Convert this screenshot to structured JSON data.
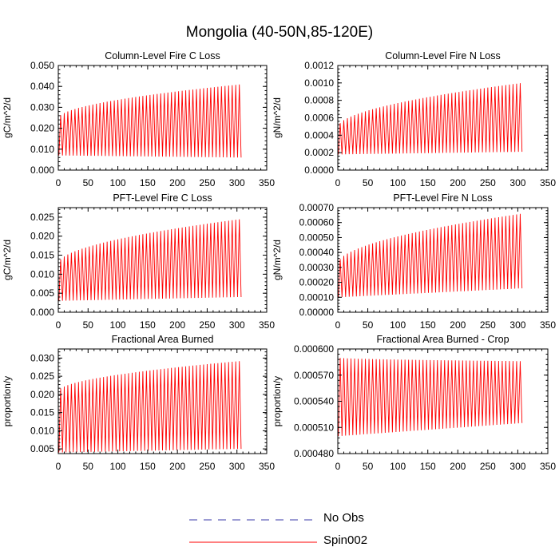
{
  "figure_title": "Mongolia (40-50N,85-120E)",
  "legend": {
    "items": [
      {
        "label": "No Obs",
        "color": "#3a3aa8",
        "style": "dashed"
      },
      {
        "label": "Spin002",
        "color": "#ff0000",
        "style": "solid"
      }
    ]
  },
  "chart_data": [
    {
      "type": "line",
      "title": "Column-Level Fire C Loss",
      "ylabel": "gC/m^2/d",
      "xlim": [
        0,
        350
      ],
      "ylim": [
        0.0,
        0.05
      ],
      "xticks": [
        0,
        50,
        100,
        150,
        200,
        250,
        300,
        350
      ],
      "yticks": [
        0.0,
        0.01,
        0.02,
        0.03,
        0.04,
        0.05
      ],
      "ytick_labels": [
        "0.000",
        "0.010",
        "0.020",
        "0.030",
        "0.040",
        "0.050"
      ],
      "series": [
        {
          "name": "Spin002",
          "color": "#ff0000",
          "x_start": 1,
          "x_end": 307,
          "cycle": 6,
          "min_start": 0.007,
          "min_end": 0.006,
          "max_start": 0.025,
          "max_end": 0.041
        }
      ]
    },
    {
      "type": "line",
      "title": "Column-Level Fire N Loss",
      "ylabel": "gN/m^2/d",
      "xlim": [
        0,
        350
      ],
      "ylim": [
        0.0,
        0.0012
      ],
      "xticks": [
        0,
        50,
        100,
        150,
        200,
        250,
        300,
        350
      ],
      "yticks": [
        0.0,
        0.0002,
        0.0004,
        0.0006,
        0.0008,
        0.001,
        0.0012
      ],
      "ytick_labels": [
        "0.0000",
        "0.0002",
        "0.0004",
        "0.0006",
        "0.0008",
        "0.0010",
        "0.0012"
      ],
      "series": [
        {
          "name": "Spin002",
          "color": "#ff0000",
          "x_start": 1,
          "x_end": 307,
          "cycle": 6,
          "min_start": 0.00018,
          "min_end": 0.00021,
          "max_start": 0.0005,
          "max_end": 0.001
        }
      ]
    },
    {
      "type": "line",
      "title": "PFT-Level Fire C Loss",
      "ylabel": "gC/m^2/d",
      "xlim": [
        0,
        350
      ],
      "ylim": [
        0.0,
        0.0275
      ],
      "xticks": [
        0,
        50,
        100,
        150,
        200,
        250,
        300,
        350
      ],
      "yticks": [
        0.0,
        0.005,
        0.01,
        0.015,
        0.02,
        0.025
      ],
      "ytick_labels": [
        "0.000",
        "0.005",
        "0.010",
        "0.015",
        "0.020",
        "0.025"
      ],
      "series": [
        {
          "name": "Spin002",
          "color": "#ff0000",
          "x_start": 1,
          "x_end": 307,
          "cycle": 6,
          "min_start": 0.003,
          "min_end": 0.004,
          "max_start": 0.013,
          "max_end": 0.0245
        }
      ]
    },
    {
      "type": "line",
      "title": "PFT-Level Fire N Loss",
      "ylabel": "gN/m^2/d",
      "xlim": [
        0,
        350
      ],
      "ylim": [
        0.0,
        0.0007
      ],
      "xticks": [
        0,
        50,
        100,
        150,
        200,
        250,
        300,
        350
      ],
      "yticks": [
        0.0,
        0.0001,
        0.0002,
        0.0003,
        0.0004,
        0.0005,
        0.0006,
        0.0007
      ],
      "ytick_labels": [
        "0.00000",
        "0.00010",
        "0.00020",
        "0.00030",
        "0.00040",
        "0.00050",
        "0.00060",
        "0.00070"
      ],
      "series": [
        {
          "name": "Spin002",
          "color": "#ff0000",
          "x_start": 1,
          "x_end": 307,
          "cycle": 6,
          "min_start": 0.0001,
          "min_end": 0.00016,
          "max_start": 0.00033,
          "max_end": 0.00066
        }
      ]
    },
    {
      "type": "line",
      "title": "Fractional Area Burned",
      "ylabel": "proportion/y",
      "xlim": [
        0,
        350
      ],
      "ylim": [
        0.0037,
        0.0325
      ],
      "xticks": [
        0,
        50,
        100,
        150,
        200,
        250,
        300,
        350
      ],
      "yticks": [
        0.005,
        0.01,
        0.015,
        0.02,
        0.025,
        0.03
      ],
      "ytick_labels": [
        "0.005",
        "0.010",
        "0.015",
        "0.020",
        "0.025",
        "0.030"
      ],
      "series": [
        {
          "name": "Spin002",
          "color": "#ff0000",
          "x_start": 1,
          "x_end": 307,
          "cycle": 6,
          "min_start": 0.004,
          "min_end": 0.005,
          "max_start": 0.021,
          "max_end": 0.0292
        }
      ]
    },
    {
      "type": "line",
      "title": "Fractional Area Burned - Crop",
      "ylabel": "proportion/y",
      "xlim": [
        0,
        350
      ],
      "ylim": [
        0.00048,
        0.0006
      ],
      "xticks": [
        0,
        50,
        100,
        150,
        200,
        250,
        300,
        350
      ],
      "yticks": [
        0.00048,
        0.00051,
        0.00054,
        0.00057,
        0.0006
      ],
      "ytick_labels": [
        "0.000480",
        "0.000510",
        "0.000540",
        "0.000570",
        "0.000600"
      ],
      "series": [
        {
          "name": "Spin002",
          "color": "#ff0000",
          "x_start": 1,
          "x_end": 307,
          "cycle": 6,
          "min_start": 0.0005,
          "min_end": 0.000515,
          "max_start": 0.00059,
          "max_end": 0.000586
        }
      ]
    }
  ]
}
